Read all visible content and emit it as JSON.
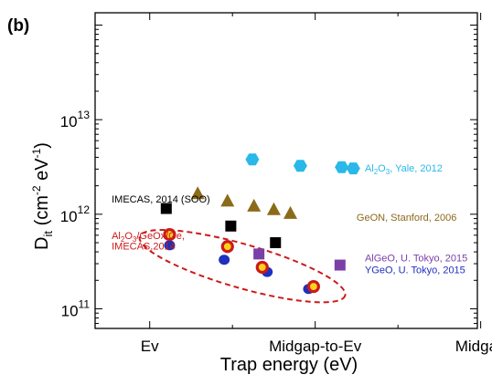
{
  "chart_data": {
    "type": "scatter",
    "panel_label": "(b)",
    "title": "",
    "xlabel": "Trap energy (eV)",
    "ylabel": {
      "main": "D",
      "sub": "it",
      "unit_open": " (cm",
      "exp1": "-2",
      "unit_mid": " eV",
      "exp2": "-1",
      "unit_close": ")"
    },
    "x_scale": "categorical-continuous",
    "x_categories": [
      "Ev",
      "Midgap-to-Ev",
      "Midgap"
    ],
    "x_category_positions": [
      0,
      1,
      2
    ],
    "xlim": [
      -0.33,
      1.98
    ],
    "y_scale": "log",
    "ylim": [
      62000000000.0,
      135000000000000.0
    ],
    "y_ticks": [
      {
        "value": 100000000000.0,
        "base": "10",
        "exp": "11"
      },
      {
        "value": 1000000000000.0,
        "base": "10",
        "exp": "12"
      },
      {
        "value": 10000000000000.0,
        "base": "10",
        "exp": "13"
      }
    ],
    "grid": false,
    "series": [
      {
        "marker": "hexagon",
        "color": "#29b8e8",
        "points": [
          [
            0.62,
            3800000000000.0
          ],
          [
            0.91,
            3250000000000.0
          ],
          [
            1.16,
            3150000000000.0
          ],
          [
            1.23,
            3050000000000.0
          ]
        ]
      },
      {
        "marker": "triangle",
        "color": "#8b6a1a",
        "points": [
          [
            0.29,
            1650000000000.0
          ],
          [
            0.47,
            1380000000000.0
          ],
          [
            0.63,
            1220000000000.0
          ],
          [
            0.75,
            1120000000000.0
          ],
          [
            0.85,
            1020000000000.0
          ]
        ]
      },
      {
        "marker": "square",
        "color": "#000000",
        "points": [
          [
            0.1,
            1150000000000.0
          ],
          [
            0.49,
            750000000000.0
          ],
          [
            0.76,
            500000000000.0
          ]
        ]
      },
      {
        "marker": "square",
        "color": "#7b3fa8",
        "points": [
          [
            0.66,
            380000000000.0
          ],
          [
            1.15,
            290000000000.0
          ]
        ]
      },
      {
        "marker": "circle",
        "color": "#1f2fbf",
        "points": [
          [
            0.12,
            470000000000.0
          ],
          [
            0.45,
            330000000000.0
          ],
          [
            0.71,
            245000000000.0
          ],
          [
            0.96,
            162000000000.0
          ]
        ]
      },
      {
        "marker": "ring",
        "color": "#ffd21a",
        "edge_color": "#cc1a1a",
        "points": [
          [
            0.12,
            610000000000.0
          ],
          [
            0.47,
            455000000000.0
          ],
          [
            0.68,
            275000000000.0
          ],
          [
            0.99,
            172000000000.0
          ]
        ]
      }
    ],
    "annotations": [
      {
        "parts": [
          {
            "t": "Al"
          },
          {
            "t": "2",
            "sub": true
          },
          {
            "t": "O"
          },
          {
            "t": "3",
            "sub": true
          },
          {
            "t": ", Yale, 2012"
          }
        ],
        "color": "#29b8e8",
        "x": 1.3,
        "y": 3100000000000.0,
        "anchor": "start"
      },
      {
        "parts": [
          {
            "t": "IMECAS, 2014 (SOO)"
          }
        ],
        "color": "#000000",
        "x": -0.23,
        "y": 1450000000000.0,
        "anchor": "start"
      },
      {
        "parts": [
          {
            "t": "GeON, Stanford, 2006"
          }
        ],
        "color": "#8b6a1a",
        "x": 1.25,
        "y": 930000000000.0,
        "anchor": "start"
      },
      {
        "parts": [
          {
            "t": "Al"
          },
          {
            "t": "2",
            "sub": true
          },
          {
            "t": "O"
          },
          {
            "t": "3",
            "sub": true
          },
          {
            "t": "/GeOx/Ge,"
          }
        ],
        "color": "#cc1a1a",
        "x": -0.23,
        "y": 600000000000.0,
        "anchor": "start"
      },
      {
        "parts": [
          {
            "t": "IMECAS,2014"
          }
        ],
        "color": "#cc1a1a",
        "x": -0.23,
        "y": 465000000000.0,
        "anchor": "start"
      },
      {
        "parts": [
          {
            "t": "AlGeO, U. Tokyo, 2015"
          }
        ],
        "color": "#7b3fa8",
        "x": 1.3,
        "y": 345000000000.0,
        "anchor": "start"
      },
      {
        "parts": [
          {
            "t": "YGeO, U. Tokyo, 2015"
          }
        ],
        "color": "#1f2fbf",
        "x": 1.3,
        "y": 260000000000.0,
        "anchor": "start"
      }
    ],
    "highlight_ellipse": {
      "color": "#cc1a1a",
      "style": "dashed",
      "from": [
        0.12,
        470000000000.0
      ],
      "to": [
        1.0,
        170000000000.0
      ]
    }
  }
}
